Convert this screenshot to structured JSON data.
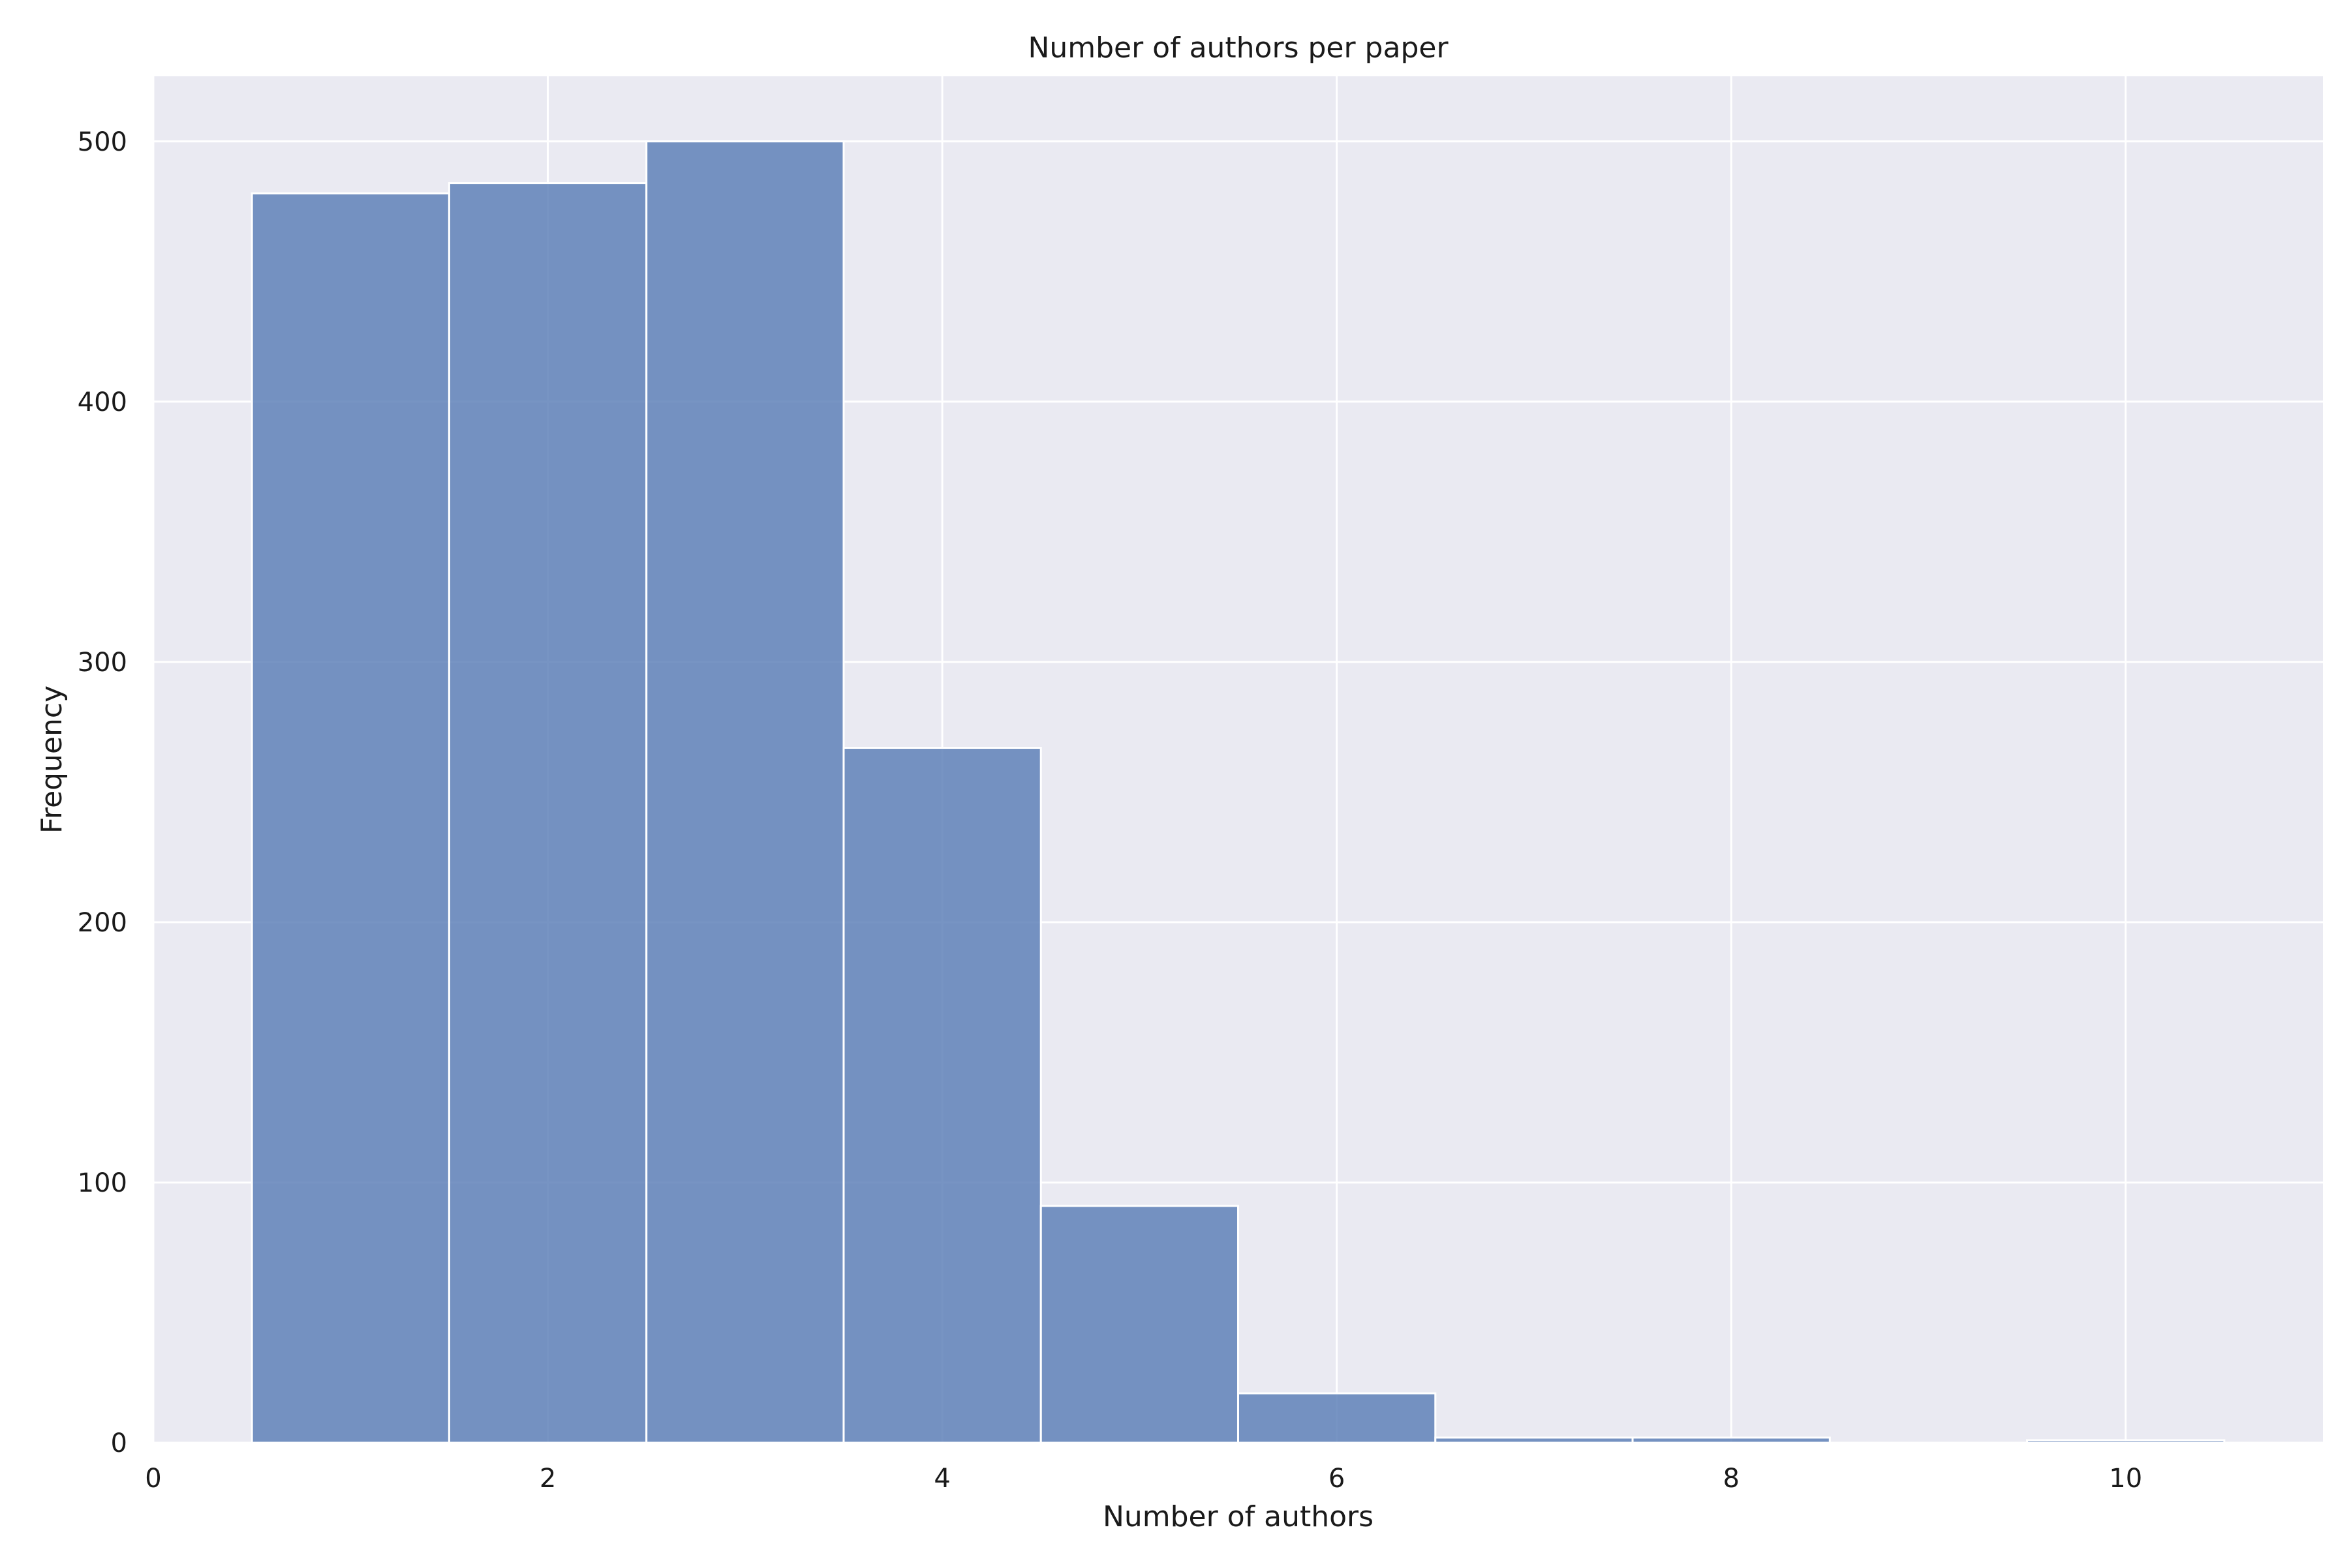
{
  "chart_data": {
    "type": "bar",
    "title": "Number of authors per paper",
    "xlabel": "Number of authors",
    "ylabel": "Frequency",
    "xlim": [
      0,
      11
    ],
    "ylim": [
      0,
      525
    ],
    "xticks": [
      0,
      2,
      4,
      6,
      8,
      10
    ],
    "yticks": [
      0,
      100,
      200,
      300,
      400,
      500
    ],
    "grid": true,
    "bin_width": 1,
    "bins": [
      {
        "x": 1,
        "value": 480
      },
      {
        "x": 2,
        "value": 484
      },
      {
        "x": 3,
        "value": 500
      },
      {
        "x": 4,
        "value": 267
      },
      {
        "x": 5,
        "value": 91
      },
      {
        "x": 6,
        "value": 19
      },
      {
        "x": 7,
        "value": 2
      },
      {
        "x": 8,
        "value": 2
      },
      {
        "x": 10,
        "value": 1
      }
    ],
    "colors": {
      "bar": "#5f81b9",
      "bar_edge": "#ffffff",
      "plot_background": "#eaeaf2",
      "grid": "#ffffff"
    }
  }
}
